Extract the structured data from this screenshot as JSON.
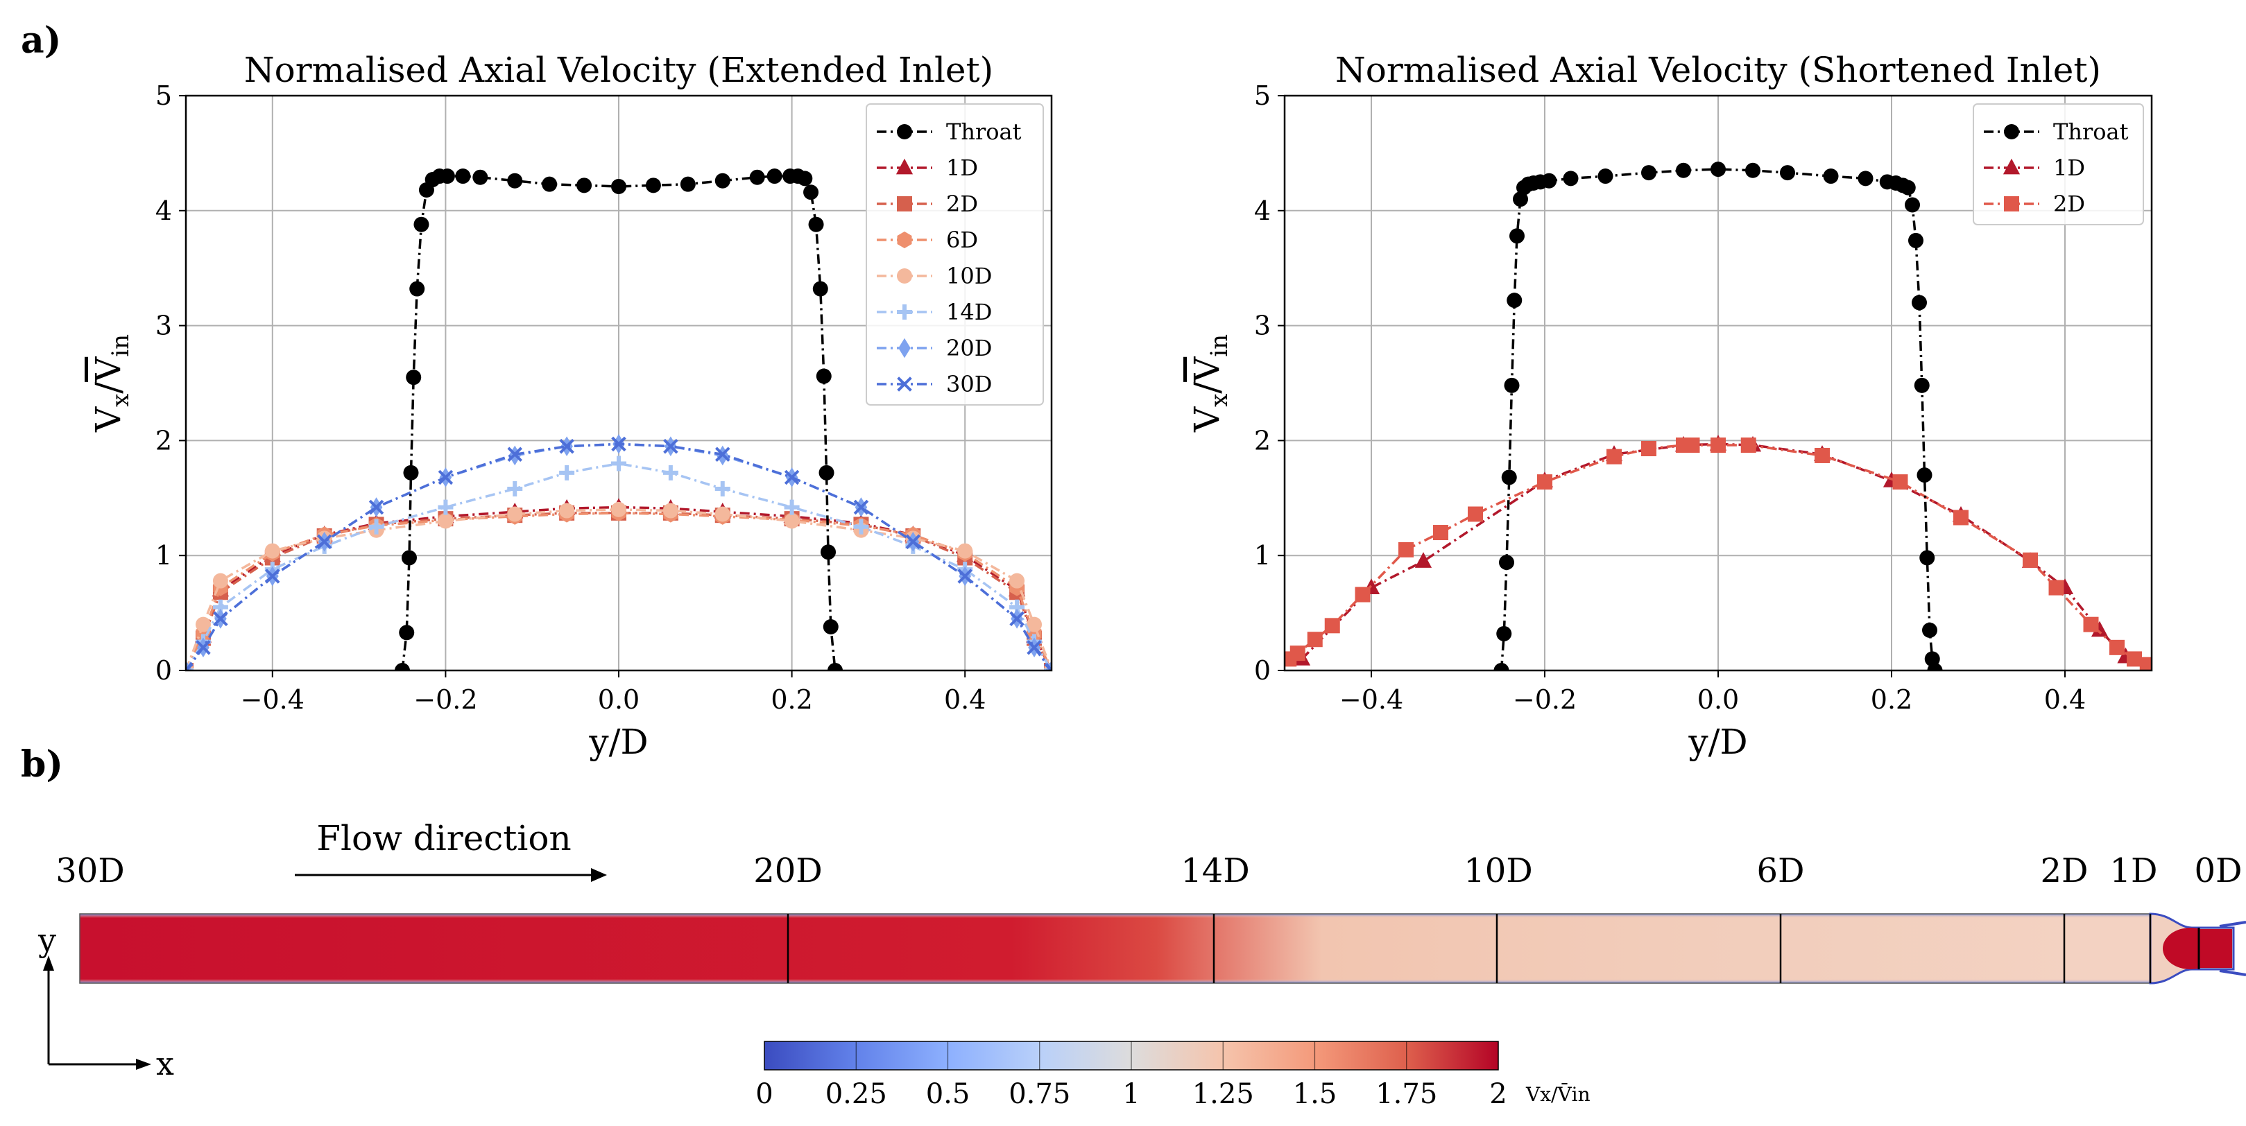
{
  "panel_labels": {
    "a": "a)",
    "b": "b)"
  },
  "chart_data": [
    {
      "type": "line",
      "title": "Normalised Axial Velocity (Extended Inlet)",
      "xlabel": "y/D",
      "ylabel": "Vx/V̄in",
      "ylabel_parts": {
        "base": "V",
        "sub1": "x",
        "slash": "/",
        "bar": "V",
        "sub2": "in"
      },
      "xlim": [
        -0.5,
        0.5
      ],
      "ylim": [
        0,
        5
      ],
      "xticks": [
        -0.4,
        -0.2,
        0.0,
        0.2,
        0.4
      ],
      "xtick_labels": [
        "−0.4",
        "−0.2",
        "0.0",
        "0.2",
        "0.4"
      ],
      "yticks": [
        0,
        1,
        2,
        3,
        4,
        5
      ],
      "ytick_labels": [
        "0",
        "1",
        "2",
        "3",
        "4",
        "5"
      ],
      "grid": true,
      "legend_position": "top-right",
      "series": [
        {
          "name": "Throat",
          "color": "#000000",
          "marker": "circle",
          "x": [
            -0.25,
            -0.245,
            -0.242,
            -0.24,
            -0.237,
            -0.233,
            -0.228,
            -0.222,
            -0.215,
            -0.207,
            -0.198,
            -0.18,
            -0.16,
            -0.12,
            -0.08,
            -0.04,
            0.0,
            0.04,
            0.08,
            0.12,
            0.16,
            0.18,
            0.198,
            0.207,
            0.215,
            0.222,
            0.228,
            0.233,
            0.237,
            0.24,
            0.242,
            0.245,
            0.25
          ],
          "y": [
            0.0,
            0.33,
            0.98,
            1.72,
            2.55,
            3.32,
            3.88,
            4.18,
            4.27,
            4.3,
            4.3,
            4.3,
            4.29,
            4.26,
            4.23,
            4.22,
            4.21,
            4.22,
            4.23,
            4.26,
            4.29,
            4.3,
            4.3,
            4.3,
            4.28,
            4.16,
            3.88,
            3.32,
            2.56,
            1.72,
            1.03,
            0.38,
            0.0
          ]
        },
        {
          "name": "1D",
          "color": "#b2182b",
          "marker": "triangle",
          "x": [
            -0.5,
            -0.48,
            -0.46,
            -0.4,
            -0.34,
            -0.28,
            -0.2,
            -0.12,
            -0.06,
            0.0,
            0.06,
            0.12,
            0.2,
            0.28,
            0.34,
            0.4,
            0.46,
            0.48,
            0.5
          ],
          "y": [
            0.0,
            0.3,
            0.7,
            1.0,
            1.18,
            1.28,
            1.34,
            1.38,
            1.41,
            1.42,
            1.41,
            1.38,
            1.34,
            1.28,
            1.18,
            1.0,
            0.7,
            0.3,
            0.0
          ]
        },
        {
          "name": "2D",
          "color": "#d6604d",
          "marker": "square",
          "x": [
            -0.5,
            -0.48,
            -0.46,
            -0.4,
            -0.34,
            -0.28,
            -0.2,
            -0.12,
            -0.06,
            0.0,
            0.06,
            0.12,
            0.2,
            0.28,
            0.34,
            0.4,
            0.46,
            0.48,
            0.5
          ],
          "y": [
            0.0,
            0.28,
            0.68,
            0.98,
            1.17,
            1.27,
            1.32,
            1.35,
            1.37,
            1.37,
            1.37,
            1.35,
            1.32,
            1.27,
            1.17,
            0.98,
            0.68,
            0.28,
            0.0
          ]
        },
        {
          "name": "6D",
          "color": "#ee8f6d",
          "marker": "hexagon",
          "x": [
            -0.5,
            -0.48,
            -0.46,
            -0.4,
            -0.34,
            -0.28,
            -0.2,
            -0.12,
            -0.06,
            0.0,
            0.06,
            0.12,
            0.2,
            0.28,
            0.34,
            0.4,
            0.46,
            0.48,
            0.5
          ],
          "y": [
            0.0,
            0.32,
            0.72,
            1.02,
            1.18,
            1.26,
            1.31,
            1.34,
            1.36,
            1.37,
            1.36,
            1.34,
            1.31,
            1.26,
            1.18,
            1.02,
            0.72,
            0.32,
            0.0
          ]
        },
        {
          "name": "10D",
          "color": "#f4b89c",
          "marker": "circle",
          "x": [
            -0.5,
            -0.48,
            -0.46,
            -0.4,
            -0.34,
            -0.28,
            -0.2,
            -0.12,
            -0.06,
            0.0,
            0.06,
            0.12,
            0.2,
            0.28,
            0.34,
            0.4,
            0.46,
            0.48,
            0.5
          ],
          "y": [
            0.0,
            0.4,
            0.78,
            1.04,
            1.15,
            1.22,
            1.3,
            1.36,
            1.39,
            1.4,
            1.39,
            1.36,
            1.3,
            1.22,
            1.15,
            1.04,
            0.78,
            0.4,
            0.0
          ]
        },
        {
          "name": "14D",
          "color": "#a6c4f3",
          "marker": "plus",
          "x": [
            -0.5,
            -0.48,
            -0.46,
            -0.4,
            -0.34,
            -0.28,
            -0.2,
            -0.12,
            -0.06,
            0.0,
            0.06,
            0.12,
            0.2,
            0.28,
            0.34,
            0.4,
            0.46,
            0.48,
            0.5
          ],
          "y": [
            0.0,
            0.25,
            0.55,
            0.88,
            1.08,
            1.25,
            1.42,
            1.58,
            1.72,
            1.8,
            1.72,
            1.58,
            1.42,
            1.25,
            1.08,
            0.88,
            0.55,
            0.25,
            0.0
          ]
        },
        {
          "name": "20D",
          "color": "#7ea2ef",
          "marker": "diamond",
          "x": [
            -0.5,
            -0.48,
            -0.46,
            -0.4,
            -0.34,
            -0.28,
            -0.2,
            -0.12,
            -0.06,
            0.0,
            0.06,
            0.12,
            0.2,
            0.28,
            0.34,
            0.4,
            0.46,
            0.48,
            0.5
          ],
          "y": [
            0.0,
            0.2,
            0.45,
            0.82,
            1.12,
            1.42,
            1.68,
            1.87,
            1.95,
            1.97,
            1.95,
            1.87,
            1.68,
            1.42,
            1.12,
            0.82,
            0.45,
            0.2,
            0.0
          ]
        },
        {
          "name": "30D",
          "color": "#4d6fd8",
          "marker": "x",
          "x": [
            -0.5,
            -0.48,
            -0.46,
            -0.4,
            -0.34,
            -0.28,
            -0.2,
            -0.12,
            -0.06,
            0.0,
            0.06,
            0.12,
            0.2,
            0.28,
            0.34,
            0.4,
            0.46,
            0.48,
            0.5
          ],
          "y": [
            0.0,
            0.2,
            0.45,
            0.82,
            1.12,
            1.42,
            1.68,
            1.88,
            1.95,
            1.97,
            1.95,
            1.88,
            1.68,
            1.42,
            1.12,
            0.82,
            0.45,
            0.2,
            0.0
          ]
        }
      ]
    },
    {
      "type": "line",
      "title": "Normalised Axial Velocity (Shortened Inlet)",
      "xlabel": "y/D",
      "ylabel": "Vx/V̄in",
      "ylabel_parts": {
        "base": "V",
        "sub1": "x",
        "slash": "/",
        "bar": "V",
        "sub2": "in"
      },
      "xlim": [
        -0.5,
        0.5
      ],
      "ylim": [
        0,
        5
      ],
      "xticks": [
        -0.4,
        -0.2,
        0.0,
        0.2,
        0.4
      ],
      "xtick_labels": [
        "−0.4",
        "−0.2",
        "0.0",
        "0.2",
        "0.4"
      ],
      "yticks": [
        0,
        1,
        2,
        3,
        4,
        5
      ],
      "ytick_labels": [
        "0",
        "1",
        "2",
        "3",
        "4",
        "5"
      ],
      "grid": true,
      "legend_position": "top-right",
      "series": [
        {
          "name": "Throat",
          "color": "#000000",
          "marker": "circle",
          "x": [
            -0.25,
            -0.247,
            -0.244,
            -0.241,
            -0.238,
            -0.235,
            -0.232,
            -0.228,
            -0.224,
            -0.219,
            -0.213,
            -0.205,
            -0.195,
            -0.17,
            -0.13,
            -0.08,
            -0.04,
            0.0,
            0.04,
            0.08,
            0.13,
            0.17,
            0.195,
            0.205,
            0.213,
            0.219,
            0.224,
            0.228,
            0.232,
            0.235,
            0.238,
            0.241,
            0.244,
            0.247,
            0.25
          ],
          "y": [
            0.0,
            0.32,
            0.94,
            1.68,
            2.48,
            3.22,
            3.78,
            4.1,
            4.2,
            4.23,
            4.24,
            4.25,
            4.26,
            4.28,
            4.3,
            4.33,
            4.35,
            4.36,
            4.35,
            4.33,
            4.3,
            4.28,
            4.25,
            4.24,
            4.22,
            4.2,
            4.05,
            3.74,
            3.2,
            2.48,
            1.7,
            0.98,
            0.35,
            0.1,
            0.0
          ]
        },
        {
          "name": "1D",
          "color": "#b2182b",
          "marker": "triangle",
          "x": [
            -0.48,
            -0.4,
            -0.34,
            -0.2,
            -0.12,
            -0.04,
            0.0,
            0.04,
            0.12,
            0.2,
            0.28,
            0.36,
            0.4,
            0.44,
            0.47,
            0.5
          ],
          "y": [
            0.1,
            0.72,
            0.95,
            1.65,
            1.88,
            1.96,
            1.97,
            1.96,
            1.88,
            1.65,
            1.35,
            0.95,
            0.72,
            0.35,
            0.12,
            0.0
          ]
        },
        {
          "name": "2D",
          "color": "#e0584a",
          "marker": "square",
          "x": [
            -0.495,
            -0.485,
            -0.465,
            -0.445,
            -0.41,
            -0.36,
            -0.32,
            -0.28,
            -0.2,
            -0.12,
            -0.08,
            -0.04,
            -0.03,
            0.0,
            0.035,
            0.12,
            0.21,
            0.28,
            0.36,
            0.39,
            0.43,
            0.46,
            0.48,
            0.495
          ],
          "y": [
            0.1,
            0.15,
            0.27,
            0.39,
            0.66,
            1.05,
            1.2,
            1.36,
            1.64,
            1.86,
            1.93,
            1.96,
            1.96,
            1.96,
            1.96,
            1.87,
            1.64,
            1.33,
            0.96,
            0.72,
            0.4,
            0.2,
            0.1,
            0.05
          ]
        }
      ]
    }
  ],
  "contour": {
    "stations": [
      "30D",
      "20D",
      "14D",
      "10D",
      "6D",
      "2D",
      "1D",
      "0D"
    ],
    "flow_label": "Flow direction",
    "axis_y": "y",
    "axis_x": "x",
    "colorbar": {
      "ticks": [
        "0",
        "0.25",
        "0.5",
        "0.75",
        "1",
        "1.25",
        "1.5",
        "1.75",
        "2"
      ],
      "label": "Vx/V̄in",
      "colors": [
        "#3b4cc0",
        "#6282ea",
        "#8db0fe",
        "#b9d0f9",
        "#dddcdc",
        "#f5c4ac",
        "#f49a7b",
        "#de604d",
        "#b40426"
      ]
    }
  }
}
